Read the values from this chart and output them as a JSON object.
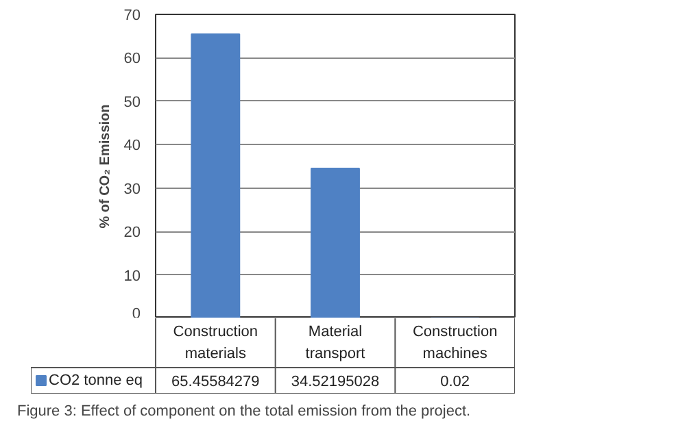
{
  "chart_data": {
    "type": "bar",
    "ylabel": "% of CO₂ Emission",
    "categories": [
      "Construction materials",
      "Material transport",
      "Construction machines"
    ],
    "series": [
      {
        "name": "CO2 tonne eq",
        "color": "#4f81c4",
        "values": [
          65.45584279,
          34.52195028,
          0.02
        ]
      }
    ],
    "ylim": [
      0,
      70
    ],
    "yticks": [
      0,
      10,
      20,
      30,
      40,
      50,
      60,
      70
    ],
    "grid": "y",
    "legend": "bottom",
    "data_labels": true,
    "annotations": [
      "Figure 3: Effect of component on the total emission from the project."
    ]
  }
}
